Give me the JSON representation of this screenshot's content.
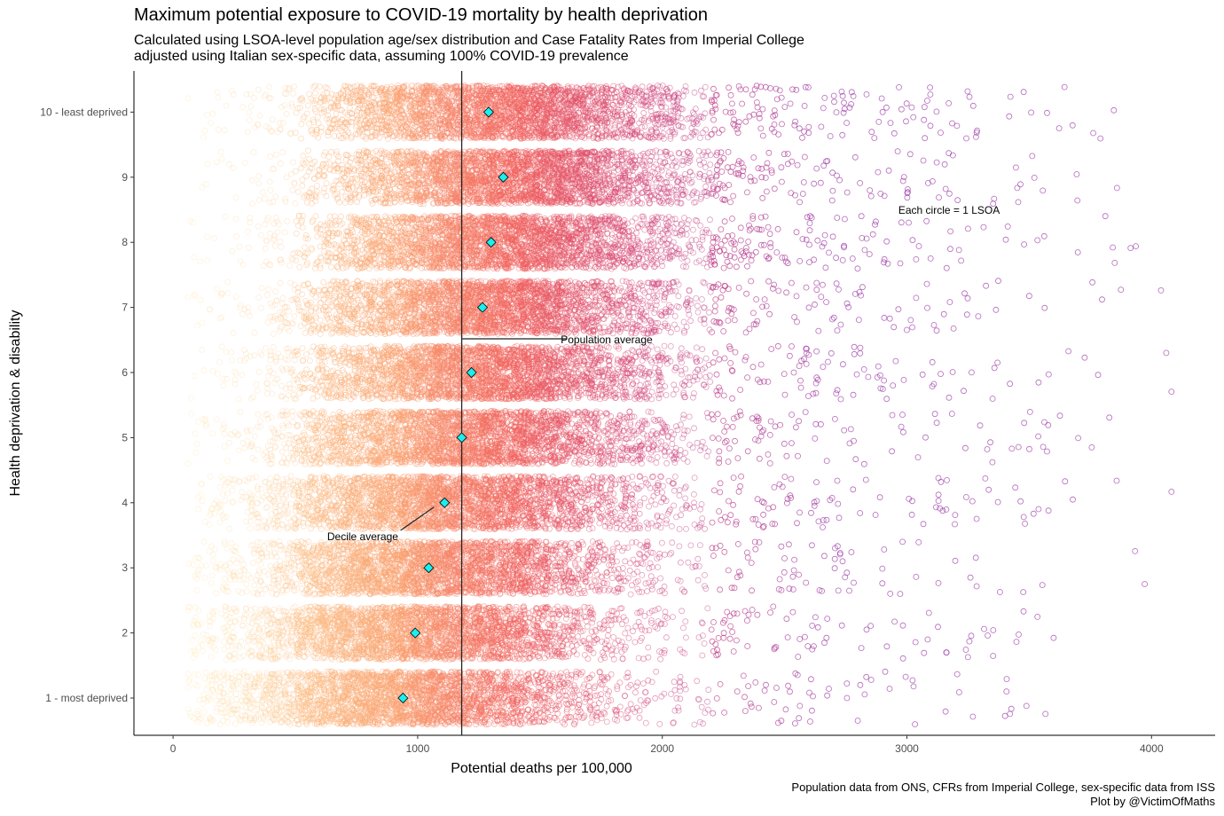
{
  "chart_data": {
    "type": "scatter",
    "title": "Maximum potential exposure to COVID-19 mortality by health deprivation",
    "subtitle_lines": [
      "Calculated using LSOA-level population age/sex distribution and Case Fatality Rates from Imperial College",
      "adjusted using Italian sex-specific data, assuming 100% COVID-19 prevalence"
    ],
    "xlabel": "Potential deaths per 100,000",
    "ylabel": "Health deprivation & disability",
    "xlim": [
      -160,
      4260
    ],
    "x_ticks": [
      0,
      1000,
      2000,
      3000,
      4000
    ],
    "x_tick_labels": [
      "0",
      "1000",
      "2000",
      "3000",
      "4000"
    ],
    "y_categories": [
      "1 - most deprived",
      "2",
      "3",
      "4",
      "5",
      "6",
      "7",
      "8",
      "9",
      "10 - least deprived"
    ],
    "decile_averages": [
      {
        "decile": "1 - most deprived",
        "value": 940
      },
      {
        "decile": "2",
        "value": 990
      },
      {
        "decile": "3",
        "value": 1045
      },
      {
        "decile": "4",
        "value": 1110
      },
      {
        "decile": "5",
        "value": 1180
      },
      {
        "decile": "6",
        "value": 1220
      },
      {
        "decile": "7",
        "value": 1265
      },
      {
        "decile": "8",
        "value": 1300
      },
      {
        "decile": "9",
        "value": 1350
      },
      {
        "decile": "10 - least deprived",
        "value": 1290
      }
    ],
    "population_average": 1180,
    "annotations": {
      "population_average": "Population average",
      "decile_average": "Decile average",
      "each_circle": "Each circle = 1 LSOA"
    },
    "points_per_decile": 3200,
    "colors": {
      "low": "#fee8a8",
      "mid1": "#fca472",
      "mid2": "#f2605c",
      "mid3": "#d43e72",
      "high": "#9b3aa6",
      "diamond_fill": "#19f0f0"
    }
  },
  "caption_lines": [
    "Population data from ONS, CFRs from Imperial College, sex-specific data from ISS",
    "Plot by @VictimOfMaths"
  ]
}
